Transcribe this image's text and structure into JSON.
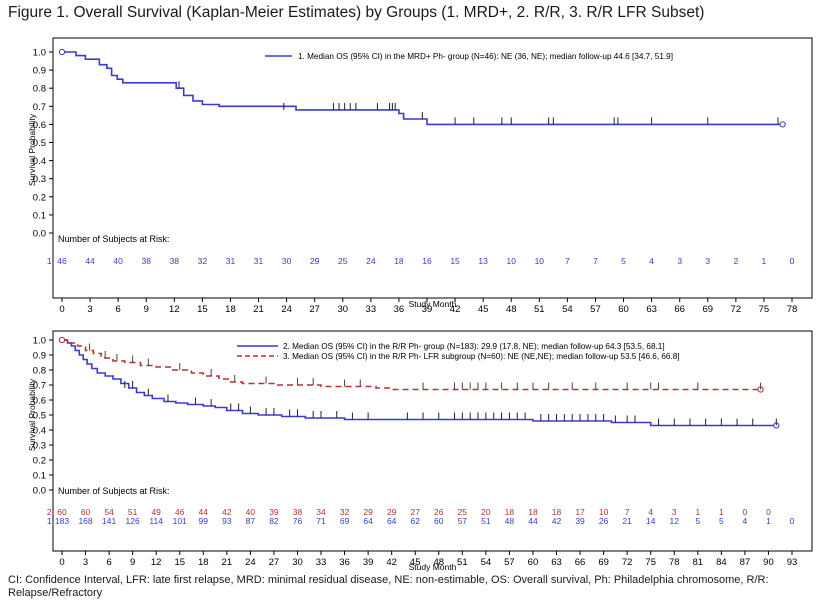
{
  "figure_title": "Figure 1. Overall Survival (Kaplan-Meier Estimates) by Groups (1. MRD+, 2. R/R, 3. R/R LFR Subset)",
  "footnote": "CI: Confidence Interval, LFR: late first relapse, MRD: minimal residual disease, NE: non-estimable, OS: Overall survival, Ph: Philadelphia chromosome, R/R: Relapse/Refractory",
  "colors": {
    "blue": "#3a3ad0",
    "red": "#b83232",
    "axis": "#000000"
  },
  "chart_data": [
    {
      "type": "line",
      "title": "",
      "xlabel": "Study Month",
      "ylabel": "Survival Probability",
      "xlim": [
        0,
        78
      ],
      "ylim": [
        0,
        1.0
      ],
      "xticks": [
        0,
        3,
        6,
        9,
        12,
        15,
        18,
        21,
        24,
        27,
        30,
        33,
        36,
        39,
        42,
        45,
        48,
        51,
        54,
        57,
        60,
        63,
        66,
        69,
        72,
        75,
        78
      ],
      "yticks": [
        0.0,
        0.1,
        0.2,
        0.3,
        0.4,
        0.5,
        0.6,
        0.7,
        0.8,
        0.9,
        1.0
      ],
      "risk_title": "Number of Subjects at Risk:",
      "series": [
        {
          "name": "1. Median OS (95% CI) in the MRD+ Ph- group (N=46): NE (36, NE); median follow-up 44.6 [34.7, 51.9]",
          "risk_label": "1:",
          "color": "blue",
          "dash": false,
          "steps": [
            [
              0,
              1.0
            ],
            [
              1.5,
              0.98
            ],
            [
              2.5,
              0.96
            ],
            [
              4,
              0.93
            ],
            [
              4.8,
              0.91
            ],
            [
              5.3,
              0.87
            ],
            [
              5.9,
              0.85
            ],
            [
              6.5,
              0.83
            ],
            [
              12.2,
              0.8
            ],
            [
              13,
              0.76
            ],
            [
              14,
              0.73
            ],
            [
              15,
              0.71
            ],
            [
              16.8,
              0.7
            ],
            [
              25,
              0.68
            ],
            [
              36,
              0.66
            ],
            [
              36.5,
              0.63
            ],
            [
              39,
              0.6
            ],
            [
              77,
              0.6
            ]
          ],
          "censors": [
            [
              12.5,
              0.8
            ],
            [
              23.7,
              0.68
            ],
            [
              29,
              0.68
            ],
            [
              29.6,
              0.68
            ],
            [
              30.2,
              0.68
            ],
            [
              30.8,
              0.68
            ],
            [
              31.4,
              0.68
            ],
            [
              33.7,
              0.68
            ],
            [
              35,
              0.68
            ],
            [
              35.3,
              0.68
            ],
            [
              35.6,
              0.68
            ],
            [
              38.5,
              0.63
            ],
            [
              42,
              0.6
            ],
            [
              44,
              0.6
            ],
            [
              47,
              0.6
            ],
            [
              48,
              0.6
            ],
            [
              52,
              0.6
            ],
            [
              52.5,
              0.6
            ],
            [
              59,
              0.6
            ],
            [
              59.4,
              0.6
            ],
            [
              63,
              0.6
            ],
            [
              69,
              0.6
            ],
            [
              76.5,
              0.6
            ]
          ],
          "risk_x": [
            0,
            3,
            6,
            9,
            12,
            15,
            18,
            21,
            24,
            27,
            30,
            33,
            36,
            39,
            42,
            45,
            48,
            51,
            54,
            57,
            60,
            63,
            66,
            69,
            72,
            75,
            78
          ],
          "risk": [
            "46",
            "44",
            "40",
            "38",
            "38",
            "32",
            "31",
            "31",
            "30",
            "29",
            "25",
            "24",
            "18",
            "16",
            "15",
            "13",
            "10",
            "10",
            "7",
            "7",
            "5",
            "4",
            "3",
            "3",
            "2",
            "1",
            "0"
          ]
        }
      ]
    },
    {
      "type": "line",
      "title": "",
      "xlabel": "Study Month",
      "ylabel": "Survival Probability",
      "xlim": [
        0,
        93
      ],
      "ylim": [
        0,
        1.0
      ],
      "xticks": [
        0,
        3,
        6,
        9,
        12,
        15,
        18,
        21,
        24,
        27,
        30,
        33,
        36,
        39,
        42,
        45,
        48,
        51,
        54,
        57,
        60,
        63,
        66,
        69,
        72,
        75,
        78,
        81,
        84,
        87,
        90,
        93
      ],
      "yticks": [
        0.0,
        0.1,
        0.2,
        0.3,
        0.4,
        0.5,
        0.6,
        0.7,
        0.8,
        0.9,
        1.0
      ],
      "risk_title": "Number of Subjects at Risk:",
      "series": [
        {
          "name": "2. Median OS (95% CI) in the R/R Ph- group (N=183): 29.9 (17.8, NE); median follow-up 64.3 [53.5, 68.1]",
          "risk_label": "1:",
          "color": "blue",
          "dash": false,
          "steps": [
            [
              0,
              1.0
            ],
            [
              0.7,
              0.98
            ],
            [
              1.2,
              0.96
            ],
            [
              1.7,
              0.93
            ],
            [
              2.2,
              0.9
            ],
            [
              2.7,
              0.87
            ],
            [
              3.2,
              0.84
            ],
            [
              3.8,
              0.81
            ],
            [
              4.5,
              0.78
            ],
            [
              5.5,
              0.76
            ],
            [
              6.5,
              0.74
            ],
            [
              7.5,
              0.71
            ],
            [
              8.5,
              0.68
            ],
            [
              9.5,
              0.65
            ],
            [
              10.5,
              0.63
            ],
            [
              11.5,
              0.61
            ],
            [
              13,
              0.59
            ],
            [
              14.5,
              0.58
            ],
            [
              16,
              0.57
            ],
            [
              18,
              0.56
            ],
            [
              19.5,
              0.55
            ],
            [
              21,
              0.53
            ],
            [
              23,
              0.51
            ],
            [
              25,
              0.5
            ],
            [
              28,
              0.49
            ],
            [
              31,
              0.48
            ],
            [
              36,
              0.47
            ],
            [
              42,
              0.47
            ],
            [
              50,
              0.47
            ],
            [
              60,
              0.46
            ],
            [
              70,
              0.45
            ],
            [
              75,
              0.43
            ],
            [
              91,
              0.43
            ]
          ],
          "censors": [
            [
              8,
              0.68
            ],
            [
              9,
              0.68
            ],
            [
              11,
              0.63
            ],
            [
              13.5,
              0.59
            ],
            [
              17,
              0.57
            ],
            [
              19,
              0.56
            ],
            [
              21.5,
              0.53
            ],
            [
              22.5,
              0.53
            ],
            [
              24,
              0.51
            ],
            [
              26,
              0.5
            ],
            [
              27,
              0.5
            ],
            [
              29,
              0.49
            ],
            [
              30,
              0.49
            ],
            [
              32,
              0.48
            ],
            [
              33,
              0.48
            ],
            [
              35,
              0.48
            ],
            [
              37,
              0.47
            ],
            [
              39,
              0.47
            ],
            [
              44,
              0.47
            ],
            [
              46,
              0.47
            ],
            [
              48,
              0.47
            ],
            [
              50,
              0.47
            ],
            [
              51,
              0.47
            ],
            [
              52,
              0.47
            ],
            [
              53,
              0.47
            ],
            [
              54,
              0.47
            ],
            [
              55,
              0.47
            ],
            [
              56,
              0.47
            ],
            [
              57,
              0.47
            ],
            [
              58,
              0.47
            ],
            [
              59,
              0.47
            ],
            [
              61,
              0.46
            ],
            [
              62,
              0.46
            ],
            [
              63,
              0.46
            ],
            [
              64,
              0.46
            ],
            [
              65,
              0.46
            ],
            [
              66,
              0.46
            ],
            [
              67,
              0.46
            ],
            [
              68,
              0.46
            ],
            [
              69,
              0.46
            ],
            [
              70.5,
              0.45
            ],
            [
              72,
              0.45
            ],
            [
              73,
              0.45
            ],
            [
              76,
              0.43
            ],
            [
              78,
              0.43
            ],
            [
              80,
              0.43
            ],
            [
              82,
              0.43
            ],
            [
              84,
              0.43
            ],
            [
              86,
              0.43
            ],
            [
              88,
              0.43
            ],
            [
              91,
              0.43
            ]
          ],
          "risk_x": [
            0,
            3,
            6,
            9,
            12,
            15,
            18,
            21,
            24,
            27,
            30,
            33,
            36,
            39,
            42,
            45,
            48,
            51,
            54,
            57,
            60,
            63,
            66,
            69,
            72,
            75,
            78,
            81,
            84,
            87,
            90,
            93
          ],
          "risk": [
            "183",
            "168",
            "141",
            "126",
            "114",
            "101",
            "99",
            "93",
            "87",
            "82",
            "76",
            "71",
            "69",
            "64",
            "64",
            "62",
            "60",
            "57",
            "51",
            "48",
            "44",
            "42",
            "39",
            "26",
            "21",
            "14",
            "12",
            "5",
            "5",
            "4",
            "1",
            "0"
          ]
        },
        {
          "name": "3. Median OS (95% CI) in the R/R Ph- LFR subgroup (N=60): NE (NE,NE); median follow-up 53.5 [46.6, 66.8]",
          "risk_label": "2:",
          "color": "red",
          "dash": true,
          "steps": [
            [
              0,
              1.0
            ],
            [
              1,
              0.98
            ],
            [
              2,
              0.96
            ],
            [
              3,
              0.93
            ],
            [
              4,
              0.91
            ],
            [
              5,
              0.88
            ],
            [
              6.5,
              0.86
            ],
            [
              8,
              0.85
            ],
            [
              10,
              0.83
            ],
            [
              12,
              0.82
            ],
            [
              14,
              0.8
            ],
            [
              16.5,
              0.78
            ],
            [
              18,
              0.76
            ],
            [
              20,
              0.74
            ],
            [
              21.5,
              0.72
            ],
            [
              23,
              0.71
            ],
            [
              27,
              0.7
            ],
            [
              33,
              0.69
            ],
            [
              40,
              0.68
            ],
            [
              42,
              0.67
            ],
            [
              89,
              0.67
            ]
          ],
          "censors": [
            [
              3.5,
              0.93
            ],
            [
              5.5,
              0.88
            ],
            [
              7,
              0.86
            ],
            [
              9,
              0.85
            ],
            [
              11,
              0.83
            ],
            [
              15,
              0.8
            ],
            [
              19,
              0.76
            ],
            [
              22,
              0.72
            ],
            [
              26,
              0.71
            ],
            [
              30,
              0.7
            ],
            [
              32,
              0.7
            ],
            [
              36,
              0.69
            ],
            [
              38,
              0.69
            ],
            [
              46,
              0.67
            ],
            [
              50,
              0.67
            ],
            [
              51,
              0.67
            ],
            [
              52,
              0.67
            ],
            [
              53,
              0.67
            ],
            [
              54,
              0.67
            ],
            [
              56,
              0.67
            ],
            [
              58,
              0.67
            ],
            [
              60,
              0.67
            ],
            [
              62,
              0.67
            ],
            [
              65,
              0.67
            ],
            [
              68,
              0.67
            ],
            [
              72,
              0.67
            ],
            [
              75,
              0.67
            ],
            [
              76,
              0.67
            ],
            [
              81,
              0.67
            ],
            [
              89,
              0.67
            ]
          ],
          "risk_x": [
            0,
            3,
            6,
            9,
            12,
            15,
            18,
            21,
            24,
            27,
            30,
            33,
            36,
            39,
            42,
            45,
            48,
            51,
            54,
            57,
            60,
            63,
            66,
            69,
            72,
            75,
            78,
            81,
            84,
            87,
            90
          ],
          "risk": [
            "60",
            "60",
            "54",
            "51",
            "49",
            "46",
            "44",
            "42",
            "40",
            "39",
            "38",
            "34",
            "32",
            "29",
            "29",
            "27",
            "26",
            "25",
            "20",
            "18",
            "18",
            "18",
            "17",
            "10",
            "7",
            "4",
            "3",
            "1",
            "1",
            "0",
            "0"
          ]
        }
      ]
    }
  ]
}
